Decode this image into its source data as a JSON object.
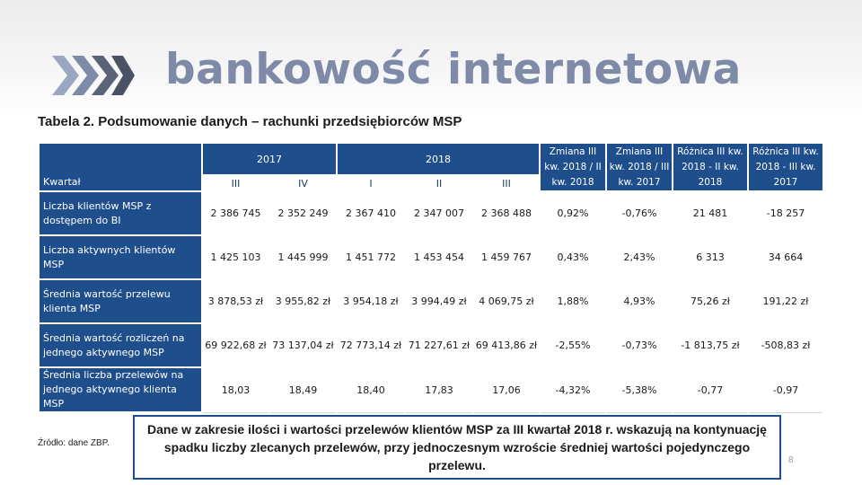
{
  "slide": {
    "title": "bankowość internetowa",
    "caption": "Tabela 2. Podsumowanie danych – rachunki przedsiębiorców MSP",
    "source": "Źródło: dane ZBP.",
    "note": "Dane w zakresie ilości i wartości przelewów klientów MSP za III kwartał 2018 r. wskazują na kontynuację spadku liczby zlecanych przelewów, przy jednoczesnym wzroście średniej wartości pojedynczego przelewu.",
    "page_number": "8",
    "chevron_icon": "triple-chevron-right-icon",
    "colors": {
      "header": "#1f4e8c",
      "title": "#7e8aa8",
      "chevron_dark": "#5a6378",
      "chevron_light": "#9aa6c2"
    }
  },
  "table": {
    "corner_label": "Kwartał",
    "periods": [
      {
        "label": "2017",
        "span": 2
      },
      {
        "label": "2018",
        "span": 3
      }
    ],
    "quarters": [
      "III",
      "IV",
      "I",
      "II",
      "III"
    ],
    "comparison_headers": [
      "Zmiana III kw. 2018 / II kw. 2018",
      "Zmiana III kw. 2018 / III kw. 2017",
      "Różnica III kw. 2018 - II kw. 2018",
      "Różnica III kw. 2018 - III kw. 2017"
    ],
    "rows": [
      {
        "label": "Liczba klientów MSP z dostępem do BI",
        "values": [
          "2 386 745",
          "2 352 249",
          "2 367 410",
          "2 347 007",
          "2 368 488",
          "0,92%",
          "-0,76%",
          "21 481",
          "-18 257"
        ]
      },
      {
        "label": "Liczba aktywnych klientów MSP",
        "values": [
          "1 425 103",
          "1 445 999",
          "1 451 772",
          "1 453 454",
          "1 459 767",
          "0,43%",
          "2,43%",
          "6 313",
          "34 664"
        ]
      },
      {
        "label": "Średnia wartość przelewu klienta MSP",
        "values": [
          "3 878,53 zł",
          "3 955,82 zł",
          "3 954,18 zł",
          "3 994,49 zł",
          "4 069,75 zł",
          "1,88%",
          "4,93%",
          "75,26 zł",
          "191,22 zł"
        ]
      },
      {
        "label": "Średnia wartość rozliczeń na jednego aktywnego MSP",
        "values": [
          "69 922,68 zł",
          "73 137,04 zł",
          "72 773,14 zł",
          "71 227,61 zł",
          "69 413,86 zł",
          "-2,55%",
          "-0,73%",
          "-1 813,75 zł",
          "-508,83 zł"
        ]
      },
      {
        "label": "Średnia liczba przelewów na jednego aktywnego klienta MSP",
        "values": [
          "18,03",
          "18,49",
          "18,40",
          "17,83",
          "17,06",
          "-4,32%",
          "-5,38%",
          "-0,77",
          "-0,97"
        ]
      }
    ]
  }
}
